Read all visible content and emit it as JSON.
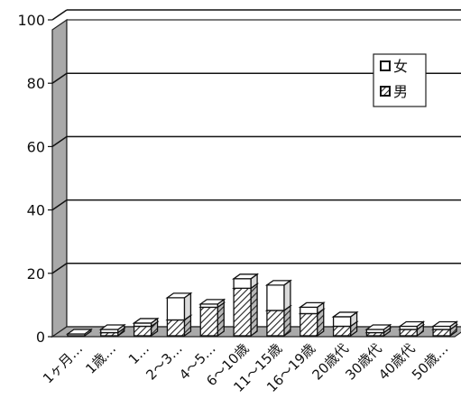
{
  "chart_data": {
    "type": "bar",
    "stacked": true,
    "three_d": true,
    "title": "",
    "xlabel": "",
    "ylabel": "",
    "ylim": [
      0,
      100
    ],
    "yticks": [
      0,
      20,
      40,
      60,
      80,
      100
    ],
    "grid": true,
    "legend_position": "top-right",
    "categories": [
      "1ヶ月…",
      "1歳…",
      "1…",
      "2～3…",
      "4～5…",
      "6～10歳",
      "11～15歳",
      "16～19歳",
      "20歳代",
      "30歳代",
      "40歳代",
      "50歳…"
    ],
    "series": [
      {
        "name": "男",
        "pattern": "hatched",
        "values": [
          0,
          1,
          3,
          5,
          9,
          15,
          8,
          7,
          3,
          1,
          2,
          2
        ]
      },
      {
        "name": "女",
        "pattern": "white",
        "values": [
          0,
          1,
          1,
          7,
          1,
          3,
          8,
          2,
          3,
          1,
          1,
          1
        ]
      }
    ],
    "legend": [
      "女",
      "男"
    ]
  }
}
